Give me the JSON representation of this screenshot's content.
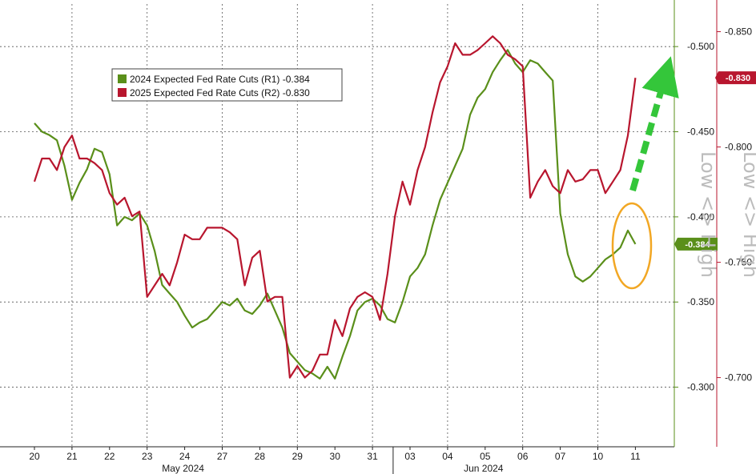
{
  "chart_data": {
    "type": "line",
    "title": "",
    "x_dates": [
      "20",
      "21",
      "22",
      "23",
      "24",
      "27",
      "28",
      "29",
      "30",
      "31",
      "03",
      "04",
      "05",
      "06",
      "07",
      "10",
      "11"
    ],
    "x_month_labels": [
      {
        "label": "May 2024",
        "after_date_index": 4
      },
      {
        "label": "Jun 2024",
        "after_date_index": 12
      }
    ],
    "left_axis": {
      "ticks": [
        "-0.300",
        "-0.350",
        "-0.400",
        "-0.450",
        "-0.500"
      ],
      "ylim": [
        -0.265,
        -0.525
      ]
    },
    "right_axis": {
      "ticks": [
        "-0.700",
        "-0.750",
        "-0.800",
        "-0.850"
      ],
      "ylim": [
        -0.67,
        -0.862
      ]
    },
    "grid": true,
    "legend": {
      "placement": "top-left",
      "entries": [
        {
          "label": "2024 Expected Fed Rate Cuts (R1)",
          "value": "-0.384",
          "color": "#5a8f1a"
        },
        {
          "label": "2025 Expected Fed Rate Cuts (R2)",
          "value": "-0.830",
          "color": "#b8162e"
        }
      ]
    },
    "series": [
      {
        "name": "2024 Expected Fed Rate Cuts (R1)",
        "axis": "left",
        "color": "#5a8f1a",
        "last_value": "-0.384",
        "x": [
          0,
          0.2,
          0.4,
          0.6,
          0.8,
          1,
          1.2,
          1.4,
          1.6,
          1.8,
          2,
          2.2,
          2.4,
          2.6,
          2.8,
          3,
          3.2,
          3.4,
          3.6,
          3.8,
          4,
          4.2,
          4.4,
          4.6,
          4.8,
          5,
          5.2,
          5.4,
          5.6,
          5.8,
          6,
          6.2,
          6.4,
          6.6,
          6.8,
          7,
          7.2,
          7.4,
          7.6,
          7.8,
          8,
          8.2,
          8.4,
          8.6,
          8.8,
          9,
          9.2,
          9.4,
          9.6,
          9.8,
          10,
          10.2,
          10.4,
          10.6,
          10.8,
          11,
          11.2,
          11.4,
          11.6,
          11.8,
          12,
          12.2,
          12.4,
          12.6,
          12.8,
          13,
          13.2,
          13.4,
          13.6,
          13.8,
          14,
          14.2,
          14.4,
          14.6,
          14.8,
          15,
          15.2,
          15.4,
          15.6,
          15.8,
          16
        ],
        "values": [
          -0.455,
          -0.45,
          -0.448,
          -0.445,
          -0.43,
          -0.41,
          -0.42,
          -0.428,
          -0.44,
          -0.438,
          -0.425,
          -0.395,
          -0.4,
          -0.398,
          -0.402,
          -0.395,
          -0.38,
          -0.36,
          -0.355,
          -0.35,
          -0.342,
          -0.335,
          -0.338,
          -0.34,
          -0.345,
          -0.35,
          -0.348,
          -0.352,
          -0.345,
          -0.343,
          -0.348,
          -0.355,
          -0.345,
          -0.335,
          -0.32,
          -0.315,
          -0.31,
          -0.308,
          -0.305,
          -0.312,
          -0.305,
          -0.318,
          -0.33,
          -0.345,
          -0.35,
          -0.352,
          -0.348,
          -0.34,
          -0.338,
          -0.35,
          -0.365,
          -0.37,
          -0.378,
          -0.395,
          -0.41,
          -0.42,
          -0.43,
          -0.44,
          -0.46,
          -0.47,
          -0.475,
          -0.485,
          -0.492,
          -0.498,
          -0.49,
          -0.485,
          -0.492,
          -0.49,
          -0.485,
          -0.48,
          -0.402,
          -0.378,
          -0.365,
          -0.362,
          -0.365,
          -0.37,
          -0.375,
          -0.378,
          -0.382,
          -0.392,
          -0.384
        ]
      },
      {
        "name": "2025 Expected Fed Rate Cuts (R2)",
        "axis": "right",
        "color": "#b8162e",
        "last_value": "-0.830",
        "x": [
          0,
          0.2,
          0.4,
          0.6,
          0.8,
          1,
          1.2,
          1.4,
          1.6,
          1.8,
          2,
          2.2,
          2.4,
          2.6,
          2.8,
          3,
          3.2,
          3.4,
          3.6,
          3.8,
          4,
          4.2,
          4.4,
          4.6,
          4.8,
          5,
          5.2,
          5.4,
          5.6,
          5.8,
          6,
          6.2,
          6.4,
          6.6,
          6.8,
          7,
          7.2,
          7.4,
          7.6,
          7.8,
          8,
          8.2,
          8.4,
          8.6,
          8.8,
          9,
          9.2,
          9.4,
          9.6,
          9.8,
          10,
          10.2,
          10.4,
          10.6,
          10.8,
          11,
          11.2,
          11.4,
          11.6,
          11.8,
          12,
          12.2,
          12.4,
          12.6,
          12.8,
          13,
          13.2,
          13.4,
          13.6,
          13.8,
          14,
          14.2,
          14.4,
          14.6,
          14.8,
          15,
          15.2,
          15.4,
          15.6,
          15.8,
          16
        ],
        "values": [
          -0.785,
          -0.795,
          -0.795,
          -0.79,
          -0.8,
          -0.805,
          -0.795,
          -0.795,
          -0.793,
          -0.79,
          -0.78,
          -0.775,
          -0.778,
          -0.77,
          -0.772,
          -0.735,
          -0.74,
          -0.745,
          -0.74,
          -0.75,
          -0.762,
          -0.76,
          -0.76,
          -0.765,
          -0.765,
          -0.765,
          -0.763,
          -0.76,
          -0.74,
          -0.752,
          -0.755,
          -0.733,
          -0.735,
          -0.735,
          -0.7,
          -0.705,
          -0.7,
          -0.703,
          -0.71,
          -0.71,
          -0.725,
          -0.718,
          -0.73,
          -0.735,
          -0.737,
          -0.735,
          -0.725,
          -0.745,
          -0.77,
          -0.785,
          -0.775,
          -0.79,
          -0.8,
          -0.815,
          -0.828,
          -0.835,
          -0.845,
          -0.84,
          -0.84,
          -0.842,
          -0.845,
          -0.848,
          -0.845,
          -0.84,
          -0.838,
          -0.835,
          -0.778,
          -0.785,
          -0.79,
          -0.783,
          -0.78,
          -0.79,
          -0.785,
          -0.786,
          -0.79,
          -0.79,
          -0.78,
          -0.785,
          -0.79,
          -0.805,
          -0.83
        ]
      }
    ],
    "side_labels": [
      "Low <> High",
      "Low <> High"
    ],
    "annotations": [
      {
        "type": "arrow",
        "color": "#34c63a",
        "style": "dashed"
      },
      {
        "type": "ellipse",
        "color": "#f2a724"
      }
    ]
  }
}
